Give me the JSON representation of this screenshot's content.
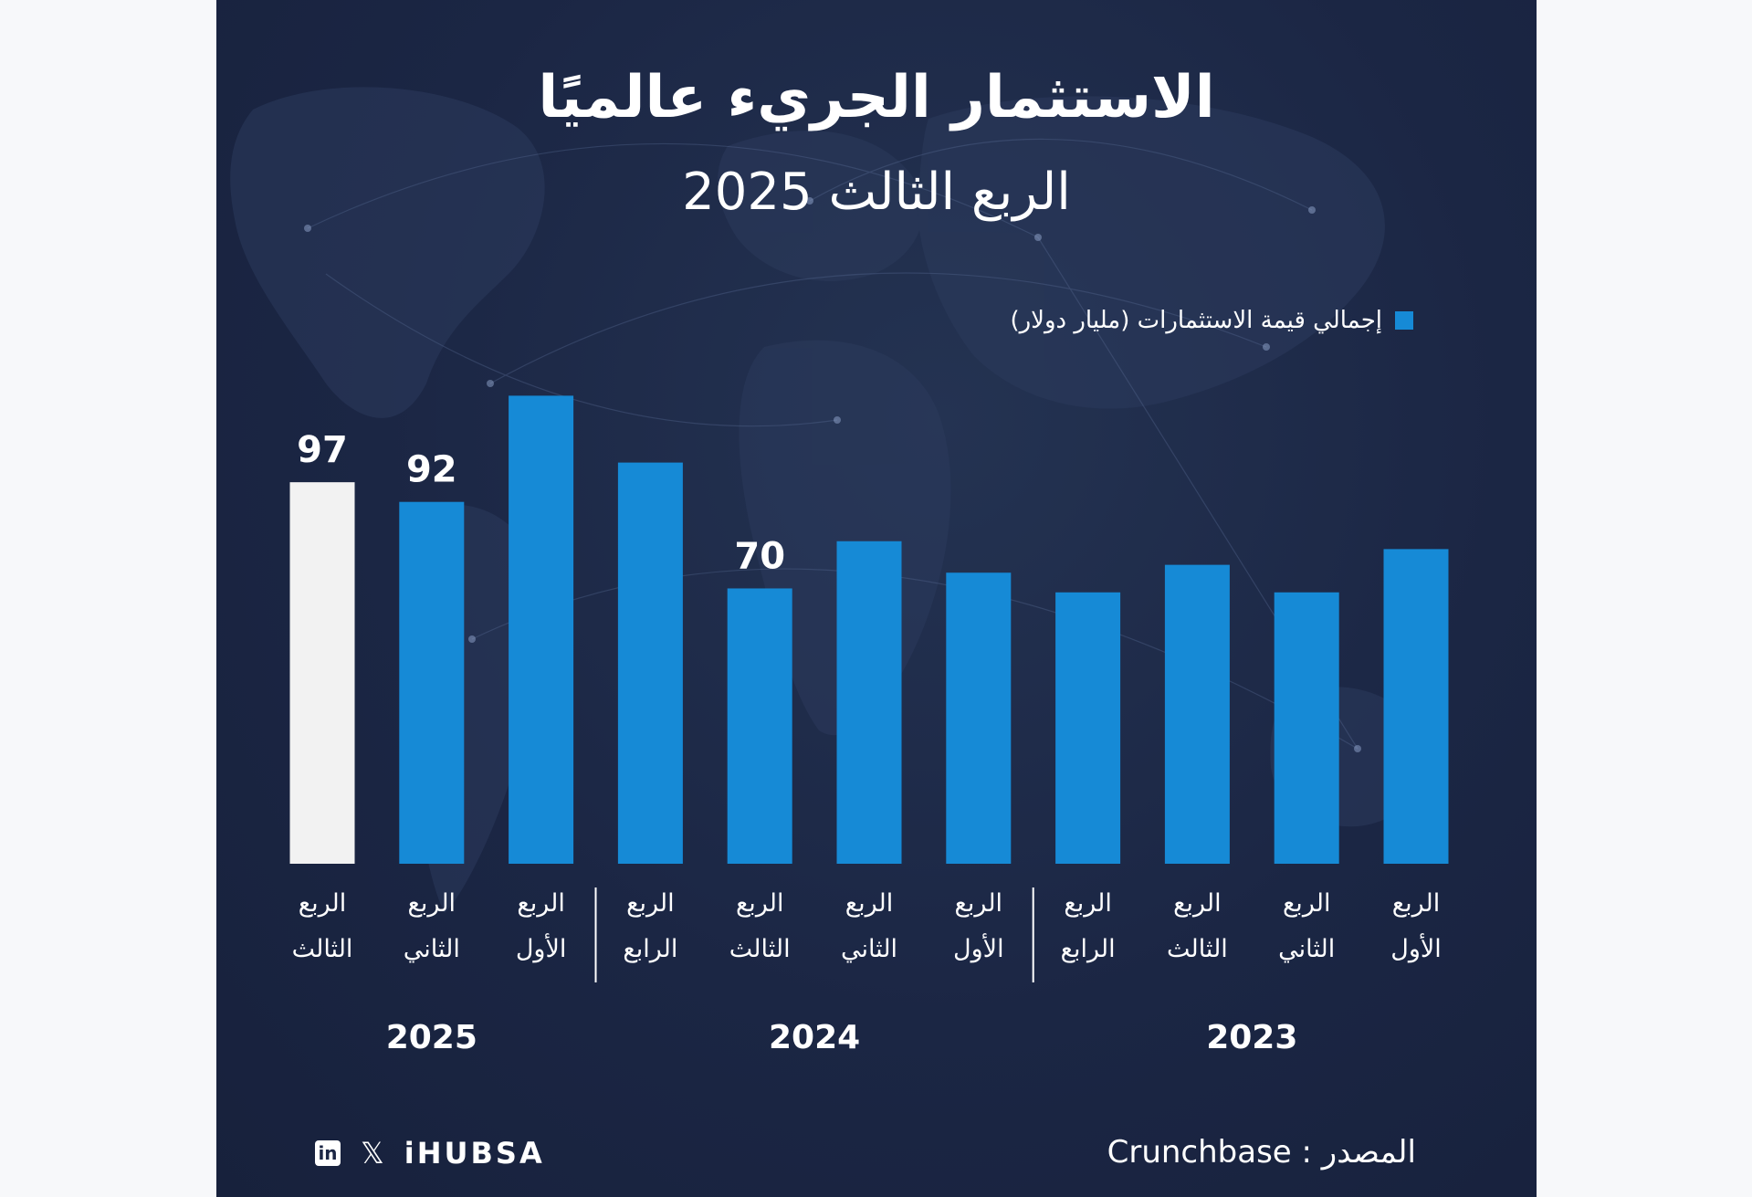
{
  "header": {
    "title": "الاستثمار الجريء عالميًا",
    "subtitle": "الربع الثالث 2025"
  },
  "legend": {
    "label": "إجمالي قيمة الاستثمارات (مليار دولار)"
  },
  "footer": {
    "source": "المصدر : Crunchbase",
    "brand": "iHUBSA"
  },
  "colors": {
    "background": "#1b2644",
    "bar": "#168ad6",
    "highlight_bar": "#f2f2f2",
    "text": "#ffffff"
  },
  "icons": [
    "linkedin-icon",
    "x-icon"
  ],
  "chart_data": {
    "type": "bar",
    "direction": "rtl",
    "series": [
      {
        "name": "إجمالي قيمة الاستثمارات (مليار دولار)"
      }
    ],
    "bars": [
      {
        "year": "2023",
        "quarter": "الربع الأول",
        "value": 80
      },
      {
        "year": "2023",
        "quarter": "الربع الثاني",
        "value": 69
      },
      {
        "year": "2023",
        "quarter": "الربع الثالث",
        "value": 76
      },
      {
        "year": "2023",
        "quarter": "الربع الرابع",
        "value": 69
      },
      {
        "year": "2024",
        "quarter": "الربع الأول",
        "value": 74
      },
      {
        "year": "2024",
        "quarter": "الربع الثاني",
        "value": 82
      },
      {
        "year": "2024",
        "quarter": "الربع الثالث",
        "value": 70,
        "label": "70"
      },
      {
        "year": "2024",
        "quarter": "الربع الرابع",
        "value": 102
      },
      {
        "year": "2025",
        "quarter": "الربع الأول",
        "value": 119
      },
      {
        "year": "2025",
        "quarter": "الربع الثاني",
        "value": 92,
        "label": "92"
      },
      {
        "year": "2025",
        "quarter": "الربع الثالث",
        "value": 97,
        "label": "97",
        "highlight": true
      }
    ],
    "years": [
      "2023",
      "2024",
      "2025"
    ],
    "ylim": [
      0,
      130
    ]
  }
}
